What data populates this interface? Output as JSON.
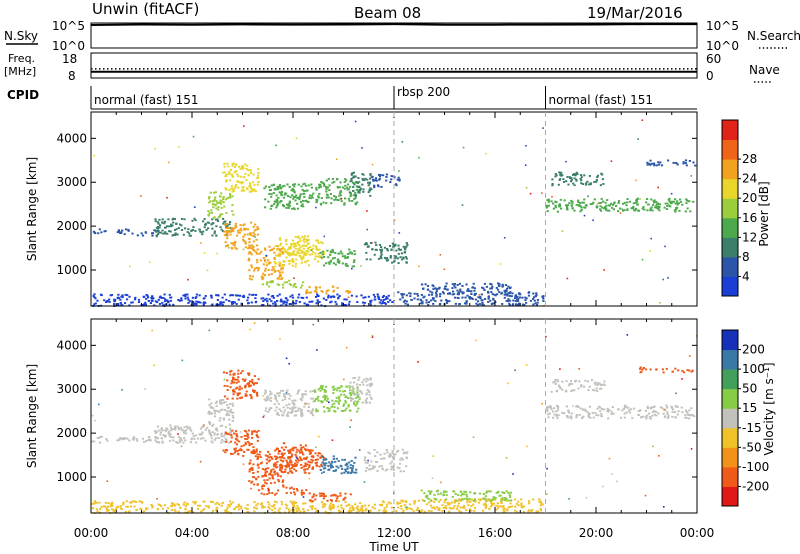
{
  "header": {
    "radar": "Unwin (fitACF)",
    "beam": "Beam 08",
    "date": "19/Mar/2016"
  },
  "colors": {
    "power": [
      "#1a3fd6",
      "#2b55a8",
      "#3c7e6c",
      "#4caa4c",
      "#9ccd3c",
      "#e8d62a",
      "#f2a21c",
      "#f0641a",
      "#e02418"
    ],
    "velocity": [
      "#1730b8",
      "#3a78a6",
      "#43a05a",
      "#86cc45",
      "#c2c2bc",
      "#f0c22a",
      "#f29118",
      "#f05a18",
      "#e01818"
    ]
  },
  "chart_data": [
    {
      "type": "line",
      "panel": "noise",
      "ylabel_left": "N.Sky",
      "ylabel_right": "N.Search",
      "yticks_left": [
        "10^5",
        "10^0"
      ],
      "yticks_right": [
        "10^5",
        "10^0"
      ],
      "scale": "log",
      "ylim": [
        1,
        100000
      ],
      "x": [
        "00:00",
        "02:00",
        "04:00",
        "06:00",
        "08:00",
        "10:00",
        "12:00",
        "14:00",
        "16:00",
        "18:00",
        "20:00",
        "22:00",
        "24:00"
      ],
      "sky_values": [
        40000,
        50000,
        45000,
        52000,
        48000,
        50000,
        60000,
        44000,
        46000,
        47000,
        49000,
        60000,
        60000
      ]
    },
    {
      "type": "line",
      "panel": "frequency",
      "ylabel_left": "Freq.",
      "ylabel_left_unit": "[MHz]",
      "ylabel_right": "Nave",
      "yticks_left": [
        "18",
        "8"
      ],
      "yticks_right": [
        "60",
        "0"
      ],
      "ylim_left": [
        8,
        18
      ],
      "ylim_right": [
        0,
        60
      ],
      "freq_mhz": 10.5,
      "nave": 22
    },
    {
      "type": "table",
      "panel": "cpid",
      "label": "CPID",
      "segments": [
        {
          "name": "normal (fast) 151",
          "start": 0,
          "end": 12
        },
        {
          "name": "rbsp 200",
          "start": 12,
          "end": 18
        },
        {
          "name": "normal (fast) 151",
          "start": 18,
          "end": 24
        }
      ]
    },
    {
      "type": "heatmap",
      "panel": "power",
      "ylabel": "Slant Range [km]",
      "yticks": [
        "1000",
        "2000",
        "3000",
        "4000"
      ],
      "ylim": [
        180,
        4600
      ],
      "xlim": [
        0,
        24
      ],
      "colorbar_label": "Power [dB]",
      "colorbar_ticks": [
        "4",
        "8",
        "12",
        "16",
        "20",
        "24",
        "28"
      ],
      "bands": [
        {
          "t0": 0.0,
          "t1": 11.9,
          "r0": 200,
          "r1": 470,
          "v": 2.5
        },
        {
          "t0": 12.0,
          "t1": 17.9,
          "r0": 220,
          "r1": 520,
          "v": 4.0
        },
        {
          "t0": 13.0,
          "t1": 16.6,
          "r0": 470,
          "r1": 720,
          "v": 5.0
        },
        {
          "t0": 0.0,
          "t1": 2.8,
          "r0": 1800,
          "r1": 1950,
          "v": 3.5
        },
        {
          "t0": 2.5,
          "t1": 5.5,
          "r0": 1800,
          "r1": 2200,
          "v": 8.5
        },
        {
          "t0": 4.6,
          "t1": 5.6,
          "r0": 2200,
          "r1": 2800,
          "v": 13.0
        },
        {
          "t0": 5.2,
          "t1": 6.6,
          "r0": 2800,
          "r1": 3450,
          "v": 18.5
        },
        {
          "t0": 6.8,
          "t1": 8.8,
          "r0": 2400,
          "r1": 3000,
          "v": 11.0
        },
        {
          "t0": 8.8,
          "t1": 10.6,
          "r0": 2500,
          "r1": 3100,
          "v": 10.0
        },
        {
          "t0": 10.2,
          "t1": 11.1,
          "r0": 2700,
          "r1": 3300,
          "v": 8.5
        },
        {
          "t0": 11.1,
          "t1": 12.2,
          "r0": 2900,
          "r1": 3200,
          "v": 6.0
        },
        {
          "t0": 5.2,
          "t1": 6.6,
          "r0": 1500,
          "r1": 2100,
          "v": 19.5
        },
        {
          "t0": 6.2,
          "t1": 7.6,
          "r0": 800,
          "r1": 1600,
          "v": 22.0
        },
        {
          "t0": 7.2,
          "t1": 8.6,
          "r0": 1100,
          "r1": 1800,
          "v": 19.0
        },
        {
          "t0": 7.7,
          "t1": 9.2,
          "r0": 1200,
          "r1": 1700,
          "v": 17.0
        },
        {
          "t0": 9.0,
          "t1": 10.5,
          "r0": 1100,
          "r1": 1500,
          "v": 10.0
        },
        {
          "t0": 10.8,
          "t1": 12.5,
          "r0": 1150,
          "r1": 1650,
          "v": 7.0
        },
        {
          "t0": 8.4,
          "t1": 10.3,
          "r0": 470,
          "r1": 650,
          "v": 20.0
        },
        {
          "t0": 6.6,
          "t1": 8.5,
          "r0": 620,
          "r1": 780,
          "v": 14.0
        },
        {
          "t0": 18.0,
          "t1": 23.9,
          "r0": 2350,
          "r1": 2650,
          "v": 12.0
        },
        {
          "t0": 18.2,
          "t1": 20.3,
          "r0": 2950,
          "r1": 3250,
          "v": 6.5
        },
        {
          "t0": 21.7,
          "t1": 23.9,
          "r0": 3400,
          "r1": 3520,
          "v": 5.5
        }
      ]
    },
    {
      "type": "heatmap",
      "panel": "velocity",
      "ylabel": "Slant Range [km]",
      "yticks": [
        "1000",
        "2000",
        "3000",
        "4000"
      ],
      "ylim": [
        180,
        4600
      ],
      "xlim": [
        0,
        24
      ],
      "xticks": [
        "00:00",
        "04:00",
        "08:00",
        "12:00",
        "16:00",
        "20:00",
        "00:00"
      ],
      "xlabel": "Time UT",
      "colorbar_label": "Velocity [m s⁻¹]",
      "colorbar_ticks": [
        "200",
        "100",
        "50",
        "15",
        "-15",
        "-50",
        "-100",
        "-200"
      ],
      "bands": [
        {
          "t0": 0.0,
          "t1": 11.9,
          "r0": 200,
          "r1": 470,
          "v": -30
        },
        {
          "t0": 12.0,
          "t1": 17.9,
          "r0": 220,
          "r1": 520,
          "v": -20
        },
        {
          "t0": 13.0,
          "t1": 16.6,
          "r0": 470,
          "r1": 720,
          "v": 40
        },
        {
          "t0": 0.0,
          "t1": 2.8,
          "r0": 1800,
          "r1": 1950,
          "v": 0
        },
        {
          "t0": 2.5,
          "t1": 5.5,
          "r0": 1800,
          "r1": 2200,
          "v": 0
        },
        {
          "t0": 4.6,
          "t1": 5.6,
          "r0": 2200,
          "r1": 2800,
          "v": 0
        },
        {
          "t0": 5.2,
          "t1": 6.6,
          "r0": 2800,
          "r1": 3450,
          "v": -150
        },
        {
          "t0": 6.8,
          "t1": 8.8,
          "r0": 2400,
          "r1": 3000,
          "v": 0
        },
        {
          "t0": 8.8,
          "t1": 10.6,
          "r0": 2500,
          "r1": 3100,
          "v": 25
        },
        {
          "t0": 10.2,
          "t1": 11.1,
          "r0": 2700,
          "r1": 3300,
          "v": 0
        },
        {
          "t0": 5.2,
          "t1": 6.6,
          "r0": 1500,
          "r1": 2100,
          "v": -150
        },
        {
          "t0": 6.2,
          "t1": 7.6,
          "r0": 800,
          "r1": 1600,
          "v": -200
        },
        {
          "t0": 7.2,
          "t1": 8.6,
          "r0": 1100,
          "r1": 1800,
          "v": -180
        },
        {
          "t0": 7.7,
          "t1": 9.2,
          "r0": 1200,
          "r1": 1700,
          "v": -170
        },
        {
          "t0": 9.0,
          "t1": 10.5,
          "r0": 1100,
          "r1": 1500,
          "v": 180
        },
        {
          "t0": 10.8,
          "t1": 12.5,
          "r0": 1150,
          "r1": 1650,
          "v": 0
        },
        {
          "t0": 8.4,
          "t1": 10.3,
          "r0": 470,
          "r1": 650,
          "v": -190
        },
        {
          "t0": 6.6,
          "t1": 8.5,
          "r0": 620,
          "r1": 780,
          "v": -120
        },
        {
          "t0": 18.0,
          "t1": 23.9,
          "r0": 2350,
          "r1": 2650,
          "v": 0
        },
        {
          "t0": 18.2,
          "t1": 20.3,
          "r0": 2950,
          "r1": 3250,
          "v": 10
        },
        {
          "t0": 21.7,
          "t1": 23.9,
          "r0": 3400,
          "r1": 3520,
          "v": -150
        }
      ]
    }
  ]
}
